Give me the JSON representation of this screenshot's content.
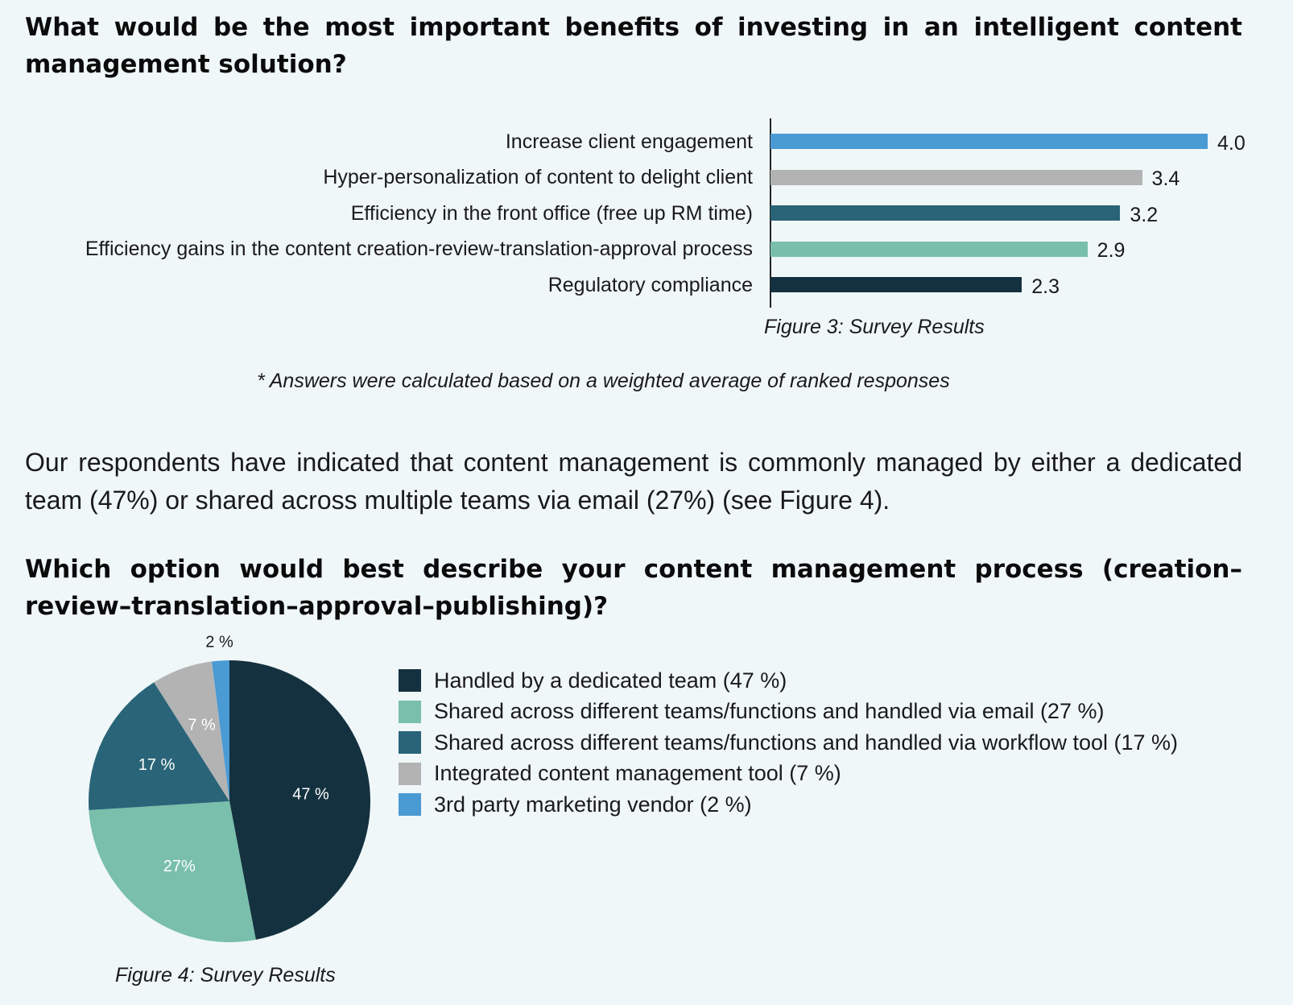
{
  "question1": "What would be the most important benefits of investing in an intelligent content management solution?",
  "figure3_caption": "Figure 3: Survey Results",
  "footnote": "* Answers were calculated based on a weighted average of ranked responses",
  "paragraph": "Our respondents have indicated that content management is commonly managed by either a dedicated team (47%) or shared across multiple teams via email (27%) (see Figure 4).",
  "question2": "Which option would best describe your content management process (creation–review–translation–approval–publishing)?",
  "figure4_caption": "Figure 4: Survey Results",
  "chart_data": [
    {
      "type": "bar",
      "orientation": "horizontal",
      "categories": [
        "Increase client engagement",
        "Hyper-personalization of content to delight client",
        "Efficiency in the front office (free up RM time)",
        "Efficiency gains in the content creation-review-translation-approval process",
        "Regulatory compliance"
      ],
      "values": [
        4.0,
        3.4,
        3.2,
        2.9,
        2.3
      ],
      "value_labels": [
        "4.0",
        "3.4",
        "3.2",
        "2.9",
        "2.3"
      ],
      "colors": [
        "#4a9ad4",
        "#b3b3b3",
        "#2a6478",
        "#79bfab",
        "#14313f"
      ],
      "xlim": [
        0,
        4.0
      ],
      "grid": false
    },
    {
      "type": "pie",
      "slices": [
        {
          "label": "Handled by a dedicated team (47 %)",
          "value": 47,
          "slice_label": "47 %",
          "color": "#14313f"
        },
        {
          "label": "Shared across different teams/functions and handled via email (27 %)",
          "value": 27,
          "slice_label": "27%",
          "color": "#79bfab"
        },
        {
          "label": "Shared across different teams/functions and handled via workflow tool (17 %)",
          "value": 17,
          "slice_label": "17 %",
          "color": "#2a6478"
        },
        {
          "label": "Integrated content management tool (7 %)",
          "value": 7,
          "slice_label": "7 %",
          "color": "#b3b3b3"
        },
        {
          "label": "3rd party marketing vendor (2 %)",
          "value": 2,
          "slice_label": "2 %",
          "color": "#4a9ad4"
        }
      ],
      "legend_placement": "right"
    }
  ]
}
